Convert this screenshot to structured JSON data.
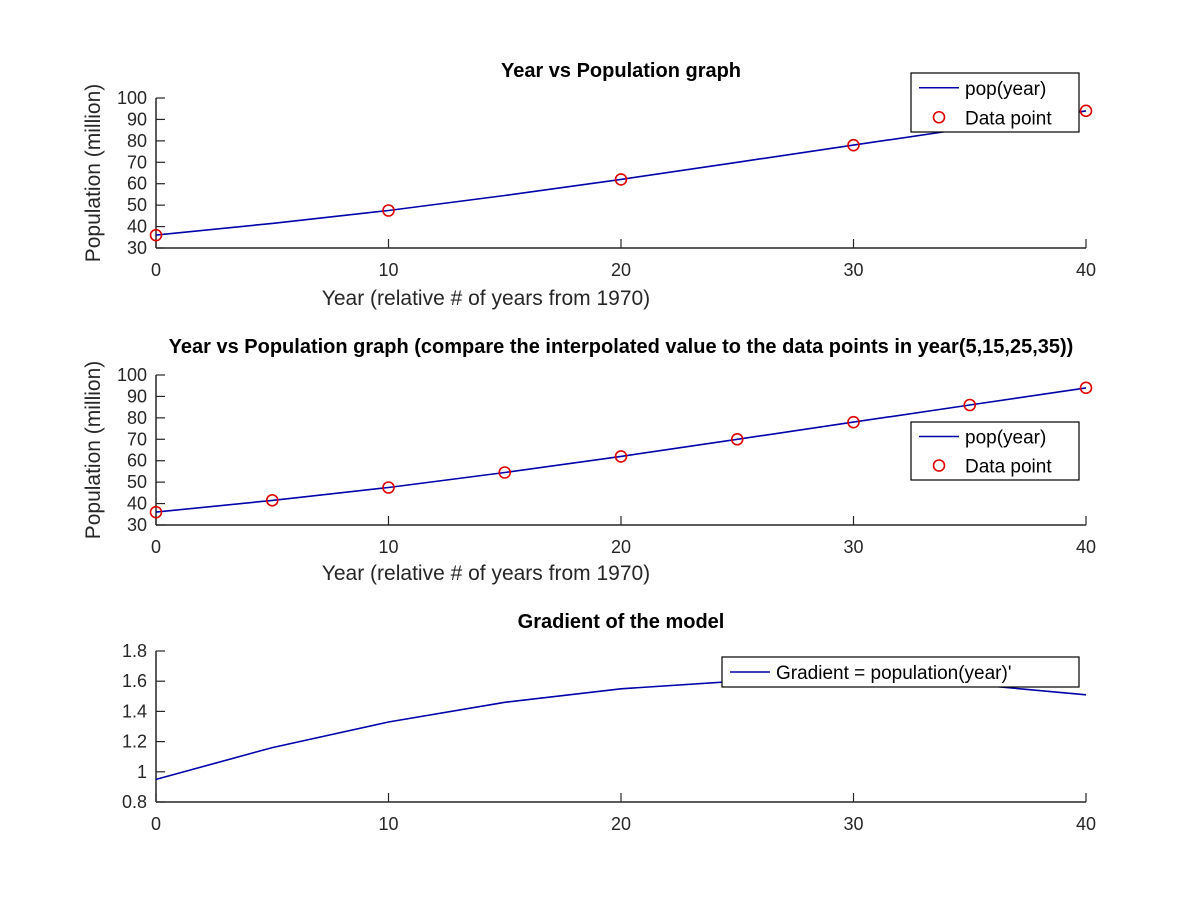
{
  "chart_data": [
    {
      "type": "line",
      "title": "Year vs Population graph",
      "xlabel": "Year (relative # of years from 1970)",
      "ylabel": "Population (million)",
      "xlim": [
        0,
        40
      ],
      "ylim": [
        30,
        100
      ],
      "xticks": [
        0,
        10,
        20,
        30,
        40
      ],
      "yticks": [
        30,
        40,
        50,
        60,
        70,
        80,
        90,
        100
      ],
      "legend_position": "top-right",
      "series": [
        {
          "name": "pop(year)",
          "style": "line",
          "color": "#0000aa",
          "x": [
            0,
            5,
            10,
            15,
            20,
            25,
            30,
            35,
            40
          ],
          "y": [
            36,
            41.5,
            47.5,
            54.5,
            62,
            70,
            78,
            86,
            94
          ]
        },
        {
          "name": "Data point",
          "style": "marker",
          "color": "#dd0000",
          "x": [
            0,
            10,
            20,
            30,
            40
          ],
          "y": [
            36,
            47.5,
            62,
            78,
            94
          ]
        }
      ]
    },
    {
      "type": "line",
      "title": "Year vs Population graph (compare the interpolated value to the data points in year(5,15,25,35))",
      "xlabel": "Year (relative # of years from 1970)",
      "ylabel": "Population (million)",
      "xlim": [
        0,
        40
      ],
      "ylim": [
        30,
        100
      ],
      "xticks": [
        0,
        10,
        20,
        30,
        40
      ],
      "yticks": [
        30,
        40,
        50,
        60,
        70,
        80,
        90,
        100
      ],
      "legend_position": "center-right",
      "series": [
        {
          "name": "pop(year)",
          "style": "line",
          "color": "#0000aa",
          "x": [
            0,
            5,
            10,
            15,
            20,
            25,
            30,
            35,
            40
          ],
          "y": [
            36,
            41.5,
            47.5,
            54.5,
            62,
            70,
            78,
            86,
            94
          ]
        },
        {
          "name": "Data point",
          "style": "marker",
          "color": "#dd0000",
          "x": [
            0,
            5,
            10,
            15,
            20,
            25,
            30,
            35,
            40
          ],
          "y": [
            36,
            41.5,
            47.5,
            54.5,
            62,
            70,
            78,
            86,
            94
          ]
        }
      ]
    },
    {
      "type": "line",
      "title": "Gradient of the model",
      "xlabel": "",
      "ylabel": "",
      "xlim": [
        0,
        40
      ],
      "ylim": [
        0.8,
        1.8
      ],
      "xticks": [
        0,
        10,
        20,
        30,
        40
      ],
      "yticks": [
        0.8,
        1,
        1.2,
        1.4,
        1.6,
        1.8
      ],
      "legend_position": "top-right",
      "series": [
        {
          "name": "Gradient = population(year)'",
          "style": "line",
          "color": "#0000aa",
          "x": [
            0,
            5,
            10,
            15,
            20,
            25,
            30,
            35,
            40
          ],
          "y": [
            0.95,
            1.16,
            1.33,
            1.46,
            1.55,
            1.6,
            1.61,
            1.58,
            1.51
          ]
        }
      ]
    }
  ]
}
